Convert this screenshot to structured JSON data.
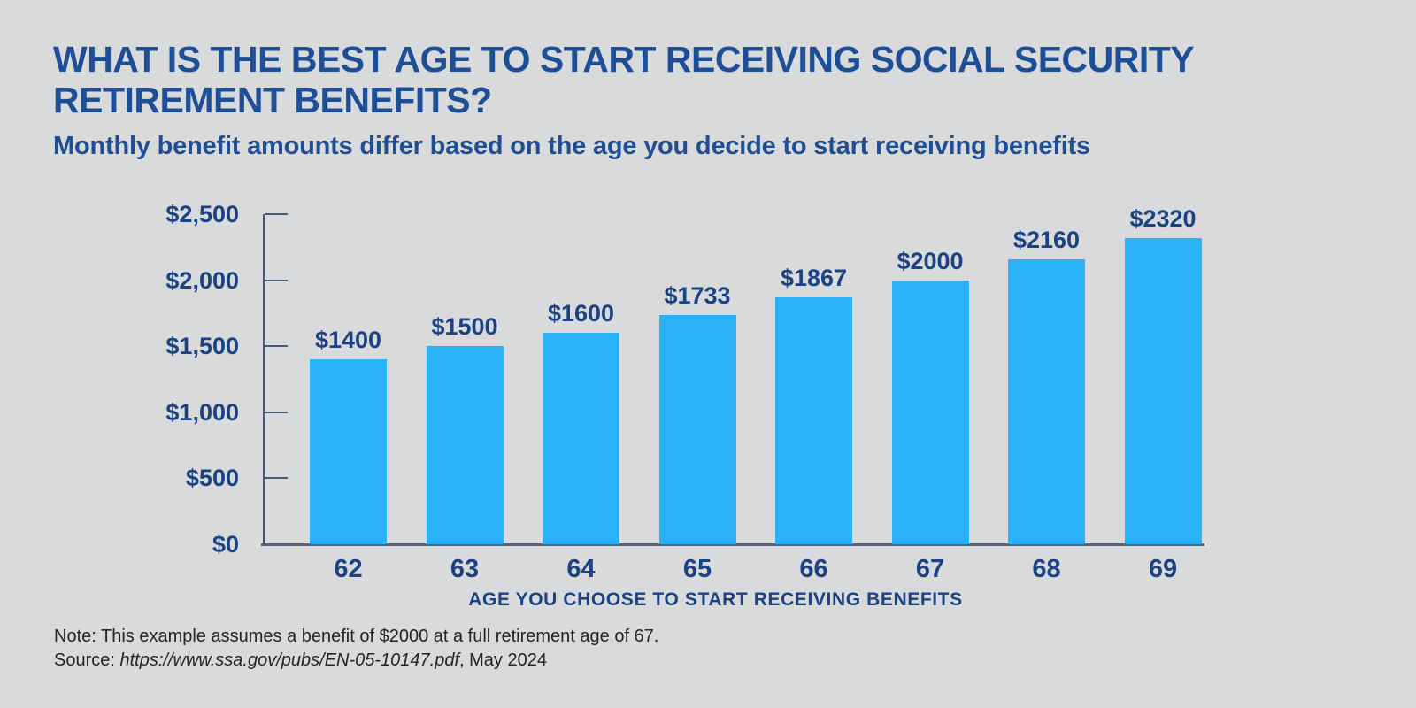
{
  "header": {
    "title_lines": [
      "WHAT IS THE BEST AGE TO START RECEIVING SOCIAL SECURITY",
      "RETIREMENT BENEFITS?"
    ],
    "subtitle": "Monthly benefit amounts differ based on the age you decide to start receiving benefits"
  },
  "colors": {
    "background": "#d9dadb",
    "title_navy": "#1e4f96",
    "label_navy": "#1b4284",
    "bar_blue": "#29b2f7",
    "axis": "#46587a",
    "baseline": "#5a6270",
    "note_text": "#222426"
  },
  "chart_data": {
    "type": "bar",
    "categories": [
      "62",
      "63",
      "64",
      "65",
      "66",
      "67",
      "68",
      "69"
    ],
    "values": [
      1400,
      1500,
      1600,
      1733,
      1867,
      2000,
      2160,
      2320
    ],
    "bar_labels": [
      "$1400",
      "$1500",
      "$1600",
      "$1733",
      "$1867",
      "$2000",
      "$2160",
      "$2320"
    ],
    "xlabel": "AGE YOU CHOOSE TO START RECEIVING BENEFITS",
    "ylabel": "",
    "ylim": [
      0,
      2500
    ],
    "y_ticks": [
      {
        "value": 2500,
        "label": "$2,500"
      },
      {
        "value": 2000,
        "label": "$2,000"
      },
      {
        "value": 1500,
        "label": "$1,500"
      },
      {
        "value": 1000,
        "label": "$1,000"
      },
      {
        "value": 500,
        "label": "$500"
      },
      {
        "value": 0,
        "label": "$0"
      }
    ],
    "grid": false,
    "legend": "none"
  },
  "footer": {
    "note": "Note: This example assumes a benefit of $2000 at a full retirement age of 67.",
    "source_prefix": "Source: ",
    "source_link": "https://www.ssa.gov/pubs/EN-05-10147.pdf",
    "source_suffix": ", May 2024"
  }
}
